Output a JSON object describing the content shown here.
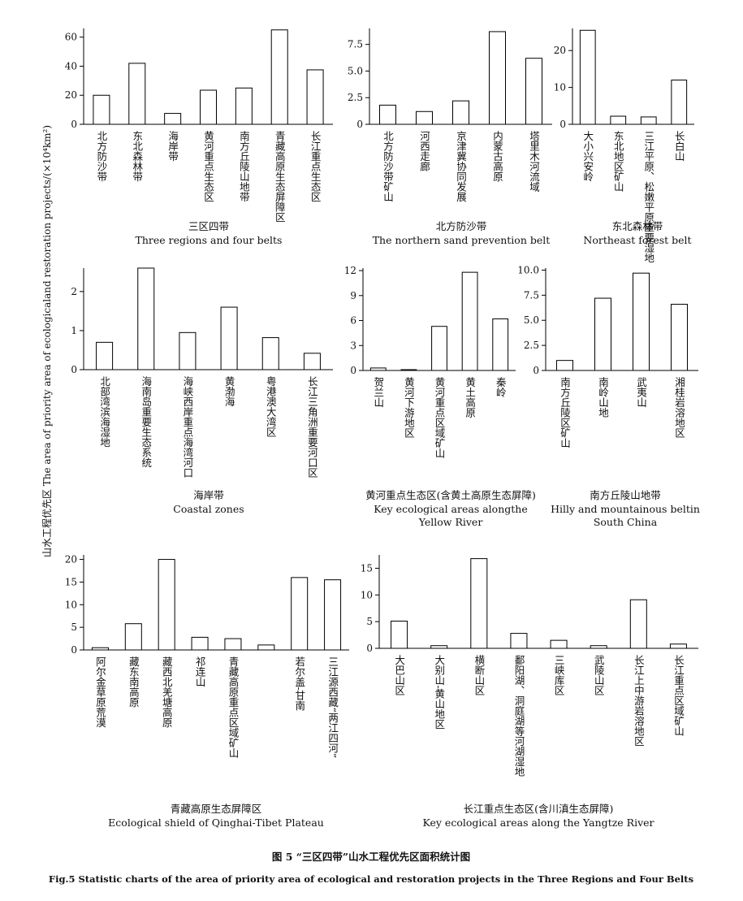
{
  "y_axis_label": "山水工程优先区 The area of priority area of ecologicaland restoration projects/(×10⁴km²)",
  "caption": {
    "zh": "图 5 “三区四带”山水工程优先区面积统计图",
    "en": "Fig.5 Statistic charts of the area of priority area of ecological and restoration projects in the Three Regions and Four Belts"
  },
  "chart_data": [
    {
      "type": "bar",
      "title": "三区四带",
      "subtitle": [
        "Three regions and four belts"
      ],
      "categories": [
        "北方防沙带",
        "东北森林带",
        "海岸带",
        "黄河重点生态区",
        "南方丘陵山地带",
        "青藏高原生态屏障区",
        "长江重点生态区"
      ],
      "values": [
        20,
        42,
        7.5,
        23.5,
        25,
        65,
        37.5
      ],
      "ylim": [
        0,
        66
      ],
      "yticks": [
        0,
        20,
        40,
        60
      ]
    },
    {
      "type": "bar",
      "title": "北方防沙带",
      "subtitle": [
        "The northern sand prevention belt"
      ],
      "categories": [
        "北方防沙带矿山",
        "河西走廊",
        "京津冀协同发展",
        "内蒙古高原",
        "塔里木河流域"
      ],
      "values": [
        1.8,
        1.2,
        2.2,
        8.7,
        6.2
      ],
      "ylim": [
        0,
        9
      ],
      "yticks": [
        0,
        2.5,
        {
          "value": 5,
          "label": "5.0"
        },
        7.5
      ]
    },
    {
      "type": "bar",
      "title": "东北森林带",
      "subtitle": [
        "Northeast forest belt"
      ],
      "categories": [
        "大小兴安岭",
        "东北地区矿山",
        "三江平原、松嫩平原重要湿地",
        "长白山"
      ],
      "values": [
        25.5,
        2.2,
        2.0,
        12
      ],
      "ylim": [
        0,
        26
      ],
      "yticks": [
        0,
        10,
        20
      ]
    },
    {
      "type": "bar",
      "title": "海岸带",
      "subtitle": [
        "Coastal zones"
      ],
      "categories": [
        "北部湾滨海湿地",
        "海南岛重要生态系统",
        "海峡西岸重点海湾河口",
        "黄渤海",
        "粤港澳大湾区",
        "长江三角洲重要河口区"
      ],
      "values": [
        0.7,
        2.6,
        0.95,
        1.6,
        0.82,
        0.42
      ],
      "ylim": [
        0,
        2.6
      ],
      "yticks": [
        0,
        1,
        2
      ]
    },
    {
      "type": "bar",
      "title": "黄河重点生态区(含黄土高原生态屏障)",
      "subtitle": [
        "Key ecological areas alongthe",
        "Yellow River"
      ],
      "categories": [
        "贺兰山",
        "黄河下游地区",
        "黄河重点区域矿山",
        "黄土高原",
        "秦岭"
      ],
      "values": [
        0.3,
        0.1,
        5.3,
        11.8,
        6.2
      ],
      "ylim": [
        0,
        12.3
      ],
      "yticks": [
        0,
        3,
        6,
        9,
        12
      ]
    },
    {
      "type": "bar",
      "title": "南方丘陵山地带",
      "subtitle": [
        "Hilly and mountainous beltin",
        "South China"
      ],
      "categories": [
        "南方丘陵区矿山",
        "南岭山地",
        "武夷山",
        "湘桂岩溶地区"
      ],
      "values": [
        1.0,
        7.2,
        9.7,
        6.6
      ],
      "ylim": [
        0,
        10.2
      ],
      "yticks": [
        0,
        2.5,
        {
          "value": 5,
          "label": "5.0"
        },
        7.5,
        {
          "value": 10,
          "label": "10.0"
        }
      ]
    },
    {
      "type": "bar",
      "title": "青藏高原生态屏障区",
      "subtitle": [
        "Ecological shield of Qinghai-Tibet Plateau"
      ],
      "categories": [
        "阿尔金草原荒漠",
        "藏东南高原",
        "藏西北羌塘高原",
        "祁连山",
        "青藏高原重点区域矿山",
        null,
        "若尔盖-甘南",
        "三江源西藏“两江四河”"
      ],
      "values": [
        0.5,
        5.8,
        20,
        2.8,
        2.5,
        1.1,
        16,
        15.5
      ],
      "ylim": [
        0,
        21
      ],
      "yticks": [
        0,
        5,
        10,
        15,
        20
      ]
    },
    {
      "type": "bar",
      "title": "长江重点生态区(含川滇生态屏障)",
      "subtitle": [
        "Key ecological areas along the Yangtze River"
      ],
      "categories": [
        "大巴山区",
        "大别山-黄山地区",
        "横断山区",
        "鄱阳湖、洞庭湖等河湖湿地",
        "三峡库区",
        "武陵山区",
        "长江上中游岩溶地区",
        "长江重点区域矿山"
      ],
      "values": [
        5.1,
        0.5,
        16.8,
        2.8,
        1.5,
        0.5,
        9.1,
        0.8
      ],
      "ylim": [
        0,
        17.5
      ],
      "yticks": [
        0,
        5,
        10,
        15
      ]
    }
  ]
}
